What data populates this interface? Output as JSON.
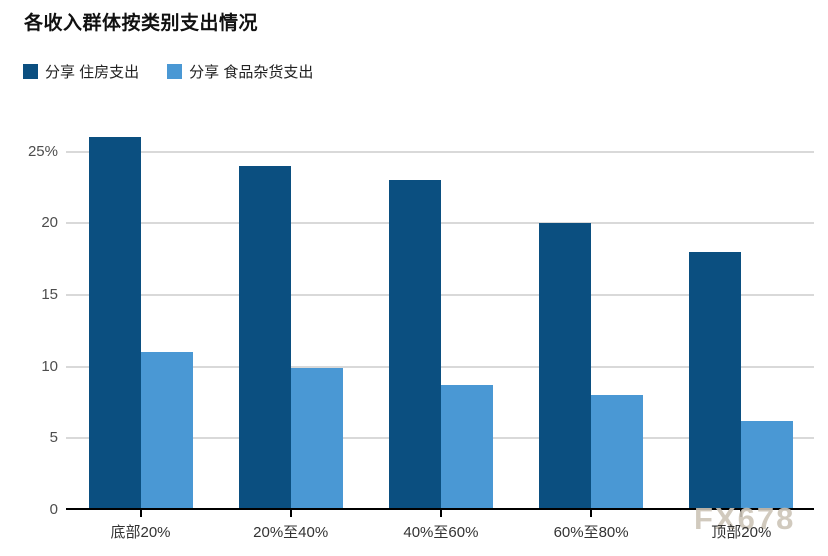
{
  "title": "各收入群体按类别支出情况",
  "legend": [
    {
      "label": "分享 住房支出",
      "color": "#0b4f80"
    },
    {
      "label": "分享 食品杂货支出",
      "color": "#4a98d4"
    }
  ],
  "watermark": "FX678",
  "colors": {
    "grid": "#d9d9d9",
    "axis": "#000000",
    "y_label": "#4d4d4d",
    "x_label": "#333333",
    "watermark": "#cdc5b8"
  },
  "chart_data": {
    "type": "bar",
    "title": "各收入群体按类别支出情况",
    "categories": [
      "底部20%",
      "20%至40%",
      "40%至60%",
      "60%至80%",
      "顶部20%"
    ],
    "series": [
      {
        "name": "分享 住房支出",
        "color": "#0b4f80",
        "values": [
          26,
          24,
          23,
          20,
          18
        ]
      },
      {
        "name": "分享 食品杂货支出",
        "color": "#4a98d4",
        "values": [
          11,
          9.9,
          8.7,
          8,
          6.2
        ]
      }
    ],
    "xlabel": "",
    "ylabel": "",
    "ylim": [
      0,
      26
    ],
    "yticks": [
      0,
      5,
      10,
      15,
      20,
      25
    ],
    "ytick_labels": [
      "0",
      "5",
      "10",
      "15",
      "20",
      "25%"
    ],
    "grid": true,
    "legend_position": "top-left"
  }
}
